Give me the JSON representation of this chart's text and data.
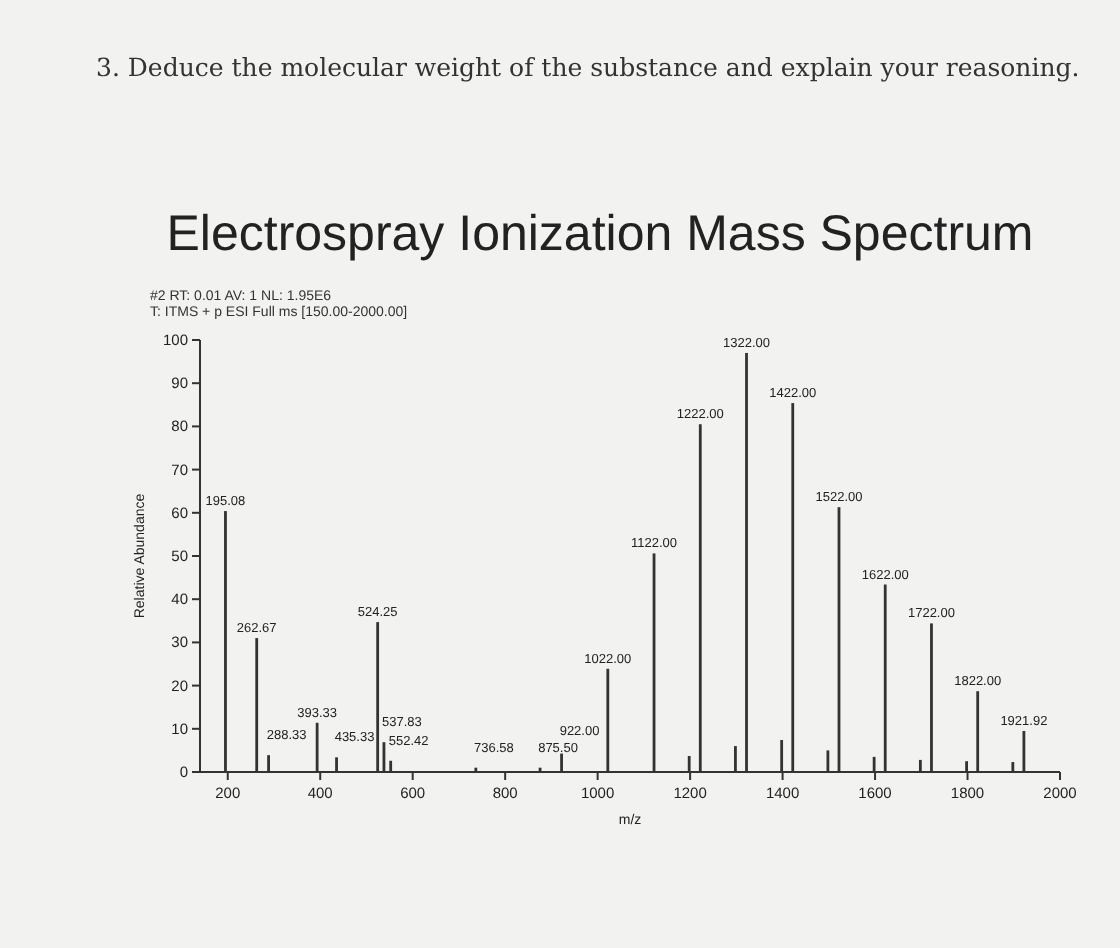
{
  "chart_data": {
    "type": "bar",
    "title": "Electrospray Ionization Mass Spectrum",
    "xlabel": "m/z",
    "ylabel": "Relative Abundance",
    "annotations": [
      "3.  Deduce the molecular weight of the substance and explain your reasoning.",
      "#2  RT: 0.01  AV: 1  NL: 1.95E6",
      "T: ITMS + p ESI Full ms [150.00-2000.00]",
      {
        "text": "195.08",
        "x": 195.08,
        "y": 60.4
      },
      {
        "text": "262.67",
        "x": 262.67,
        "y": 31
      },
      {
        "text": "288.33",
        "x": 288.33,
        "y": 3.9
      },
      {
        "text": "393.33",
        "x": 393.33,
        "y": 11.4
      },
      {
        "text": "435.33",
        "x": 435.33,
        "y": 3.4
      },
      {
        "text": "524.25",
        "x": 524.25,
        "y": 34.7
      },
      {
        "text": "537.83",
        "x": 537.83,
        "y": 6.9
      },
      {
        "text": "552.42",
        "x": 552.42,
        "y": 2.6
      },
      {
        "text": "736.58",
        "x": 736.58,
        "y": 1
      },
      {
        "text": "875.50",
        "x": 875.5,
        "y": 1
      },
      {
        "text": "922.00",
        "x": 922,
        "y": 4.9
      },
      {
        "text": "1022.00",
        "x": 1022,
        "y": 23.9
      },
      {
        "text": "1122.00",
        "x": 1122,
        "y": 50.6
      },
      {
        "text": "1222.00",
        "x": 1222,
        "y": 80.5
      },
      {
        "text": "1322.00",
        "x": 1322,
        "y": 97
      },
      {
        "text": "1422.00",
        "x": 1422,
        "y": 85.4
      },
      {
        "text": "1522.00",
        "x": 1522,
        "y": 61.3
      },
      {
        "text": "1622.00",
        "x": 1622,
        "y": 43.4
      },
      {
        "text": "1722.00",
        "x": 1722,
        "y": 34.4
      },
      {
        "text": "1822.00",
        "x": 1822,
        "y": 18.7
      },
      {
        "text": "1921.92",
        "x": 1921.92,
        "y": 9.5
      }
    ],
    "x": [
      195.08,
      262.67,
      288.33,
      393.33,
      435.33,
      524.25,
      537.83,
      552.42,
      736.58,
      875.5,
      922,
      1022,
      1122,
      1198,
      1222,
      1298,
      1322,
      1398,
      1422,
      1498,
      1522,
      1598,
      1622,
      1698,
      1722,
      1798,
      1822,
      1898,
      1921.92
    ],
    "values": [
      60.4,
      31,
      3.9,
      11.4,
      3.4,
      34.7,
      6.9,
      2.6,
      1,
      1,
      4.9,
      23.9,
      50.6,
      3.7,
      80.5,
      6,
      97,
      7.4,
      85.4,
      5,
      61.3,
      3.5,
      43.4,
      2.8,
      34.4,
      2.5,
      18.7,
      2.3,
      9.5
    ],
    "color": "#333333",
    "xlim": [
      140,
      2000
    ],
    "xticks": [
      200,
      400,
      600,
      800,
      1000,
      1200,
      1400,
      1600,
      1800,
      2000
    ],
    "ylim": [
      0,
      100
    ],
    "yticks": [
      0,
      10,
      20,
      30,
      40,
      50,
      60,
      70,
      80,
      90,
      100
    ],
    "grid": false
  }
}
